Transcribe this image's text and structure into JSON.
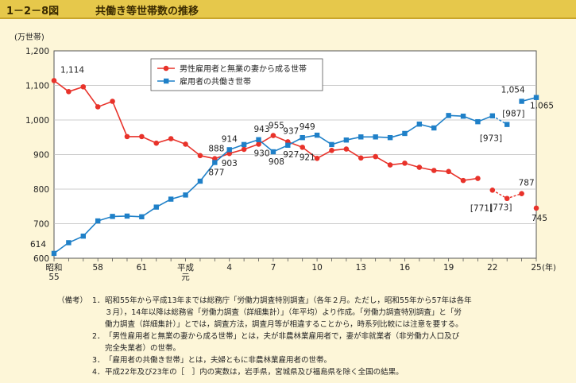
{
  "figure": {
    "number": "1－2－8図",
    "title": "共働き等世帯数の推移"
  },
  "chart_data": {
    "type": "line",
    "title": "共働き等世帯数の推移",
    "ylabel": "(万世帯)",
    "xunit": "(年)",
    "ylim": [
      600,
      1200
    ],
    "yticks": [
      600,
      700,
      800,
      900,
      "1,000",
      "1,100",
      "1,200"
    ],
    "ytick_values": [
      600,
      700,
      800,
      900,
      1000,
      1100,
      1200
    ],
    "xlim": [
      1980,
      2013
    ],
    "xticks": [
      {
        "year": 1980,
        "label": "昭和",
        "label2": "55"
      },
      {
        "year": 1983,
        "label": "58",
        "label2": ""
      },
      {
        "year": 1986,
        "label": "61",
        "label2": ""
      },
      {
        "year": 1989,
        "label": "平成",
        "label2": "元"
      },
      {
        "year": 1992,
        "label": "4",
        "label2": ""
      },
      {
        "year": 1995,
        "label": "7",
        "label2": ""
      },
      {
        "year": 1998,
        "label": "10",
        "label2": ""
      },
      {
        "year": 2001,
        "label": "13",
        "label2": ""
      },
      {
        "year": 2004,
        "label": "16",
        "label2": ""
      },
      {
        "year": 2007,
        "label": "19",
        "label2": ""
      },
      {
        "year": 2010,
        "label": "22",
        "label2": ""
      },
      {
        "year": 2013,
        "label": "25",
        "label2": "(年)"
      }
    ],
    "grid": true,
    "legend_position": "top-center",
    "series": [
      {
        "name": "男性雇用者と無業の妻から成る世帯",
        "color": "#e8322a",
        "marker": "circle",
        "x": [
          1980,
          1981,
          1982,
          1983,
          1984,
          1985,
          1986,
          1987,
          1988,
          1989,
          1990,
          1991,
          1992,
          1993,
          1994,
          1995,
          1996,
          1997,
          1998,
          1999,
          2000,
          2001,
          2002,
          2003,
          2004,
          2005,
          2006,
          2007,
          2008,
          2009,
          2010,
          2011,
          2012,
          2013
        ],
        "values": [
          1114,
          1082,
          1096,
          1038,
          1054,
          952,
          952,
          933,
          946,
          930,
          897,
          888,
          903,
          915,
          930,
          955,
          937,
          921,
          889,
          912,
          916,
          890,
          894,
          870,
          875,
          863,
          854,
          851,
          825,
          831,
          797,
          773,
          787,
          745
        ],
        "gap_after_year": 2009,
        "dashed_from": 2010,
        "dashed_to": 2012
      },
      {
        "name": "雇用者の共働き世帯",
        "color": "#1f80c8",
        "marker": "square",
        "x": [
          1980,
          1981,
          1982,
          1983,
          1984,
          1985,
          1986,
          1987,
          1988,
          1989,
          1990,
          1991,
          1992,
          1993,
          1994,
          1995,
          1996,
          1997,
          1998,
          1999,
          2000,
          2001,
          2002,
          2003,
          2004,
          2005,
          2006,
          2007,
          2008,
          2009,
          2010,
          2011,
          2012,
          2013
        ],
        "values": [
          614,
          645,
          664,
          708,
          721,
          722,
          720,
          748,
          771,
          783,
          823,
          877,
          914,
          929,
          943,
          908,
          927,
          949,
          956,
          929,
          942,
          951,
          951,
          949,
          961,
          988,
          977,
          1013,
          1011,
          995,
          1012,
          987,
          1054,
          1065
        ],
        "dashed_from": 2010,
        "dashed_to": 2011
      }
    ],
    "annotations": [
      {
        "text": "1,114",
        "x": 1980,
        "y": 1114,
        "series": 0
      },
      {
        "text": "614",
        "x": 1980,
        "y": 614,
        "series": 1
      },
      {
        "text": "888",
        "x": 1991,
        "y": 888,
        "series": 0
      },
      {
        "text": "877",
        "x": 1991,
        "y": 877,
        "series": 1
      },
      {
        "text": "914",
        "x": 1992,
        "y": 914,
        "series": 1
      },
      {
        "text": "903",
        "x": 1992,
        "y": 903,
        "series": 0
      },
      {
        "text": "943",
        "x": 1994,
        "y": 943,
        "series": 1
      },
      {
        "text": "930",
        "x": 1994,
        "y": 930,
        "series": 0
      },
      {
        "text": "955",
        "x": 1995,
        "y": 955,
        "series": 0
      },
      {
        "text": "908",
        "x": 1995,
        "y": 908,
        "series": 1
      },
      {
        "text": "937",
        "x": 1996,
        "y": 937,
        "series": 0
      },
      {
        "text": "927",
        "x": 1996,
        "y": 927,
        "series": 1
      },
      {
        "text": "949",
        "x": 1997,
        "y": 949,
        "series": 1
      },
      {
        "text": "921",
        "x": 1997,
        "y": 921,
        "series": 0
      },
      {
        "text": "[973]",
        "x": 2010,
        "y": 973,
        "series": 1
      },
      {
        "text": "[987]",
        "x": 2011,
        "y": 987,
        "series": 1
      },
      {
        "text": "[771]",
        "x": 2010,
        "y": 771,
        "series": 0
      },
      {
        "text": "[773]",
        "x": 2011,
        "y": 773,
        "series": 0
      },
      {
        "text": "1,054",
        "x": 2012,
        "y": 1054,
        "series": 1
      },
      {
        "text": "1,065",
        "x": 2013,
        "y": 1065,
        "series": 1
      },
      {
        "text": "787",
        "x": 2012,
        "y": 787,
        "series": 0
      },
      {
        "text": "745",
        "x": 2013,
        "y": 745,
        "series": 0
      }
    ]
  },
  "notes": {
    "header": "（備考）",
    "items": [
      {
        "num": "1．",
        "text": "昭和55年から平成13年までは総務庁「労働力調査特別調査」（各年２月。ただし，昭和55年から57年は各年"
      },
      {
        "num": "",
        "text": "３月），14年以降は総務省「労働力調査（詳細集計）」（年平均）より作成。「労働力調査特別調査」と「労"
      },
      {
        "num": "",
        "text": "働力調査（詳細集計）」とでは，調査方法，調査月等が相違することから，時系列比較には注意を要する。"
      },
      {
        "num": "2．",
        "text": "「男性雇用者と無業の妻から成る世帯」とは，夫が非農林業雇用者で，妻が非就業者（非労働力人口及び"
      },
      {
        "num": "",
        "text": "完全失業者）の世帯。"
      },
      {
        "num": "3．",
        "text": "「雇用者の共働き世帯」とは，夫婦ともに非農林業雇用者の世帯。"
      },
      {
        "num": "4．",
        "text": "平成22年及び23年の［　］内の実数は，岩手県，宮城県及び福島県を除く全国の結果。"
      }
    ]
  }
}
